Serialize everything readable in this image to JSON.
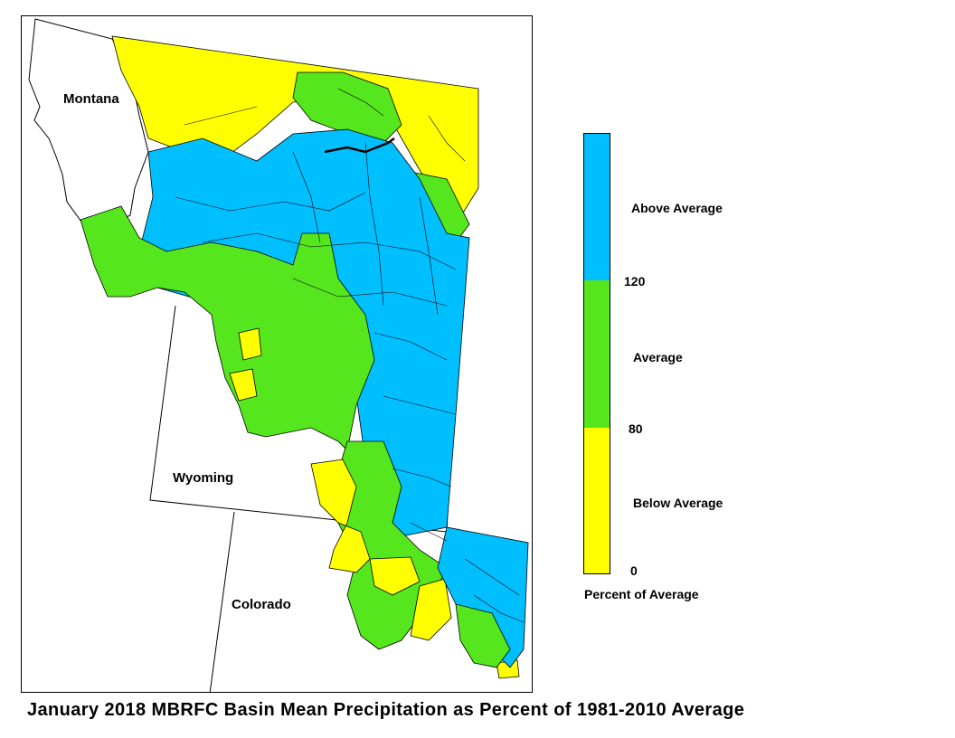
{
  "caption": "January 2018 MBRFC Basin Mean Precipitation as Percent of 1981-2010 Average",
  "states": {
    "montana": "Montana",
    "wyoming": "Wyoming",
    "colorado": "Colorado"
  },
  "legend": {
    "title": "Percent of Average",
    "categories": [
      {
        "label": "Above Average",
        "min": 120,
        "max": null,
        "color": "#00BFFF"
      },
      {
        "label": "Average",
        "min": 80,
        "max": 120,
        "color": "#55E61E"
      },
      {
        "label": "Below Average",
        "min": 0,
        "max": 80,
        "color": "#FFFF00"
      }
    ],
    "breaks": [
      "120",
      "80",
      "0"
    ]
  },
  "colors": {
    "above": "#00BFFF",
    "average": "#55E61E",
    "below": "#FFFF00",
    "outline": "#000000"
  }
}
